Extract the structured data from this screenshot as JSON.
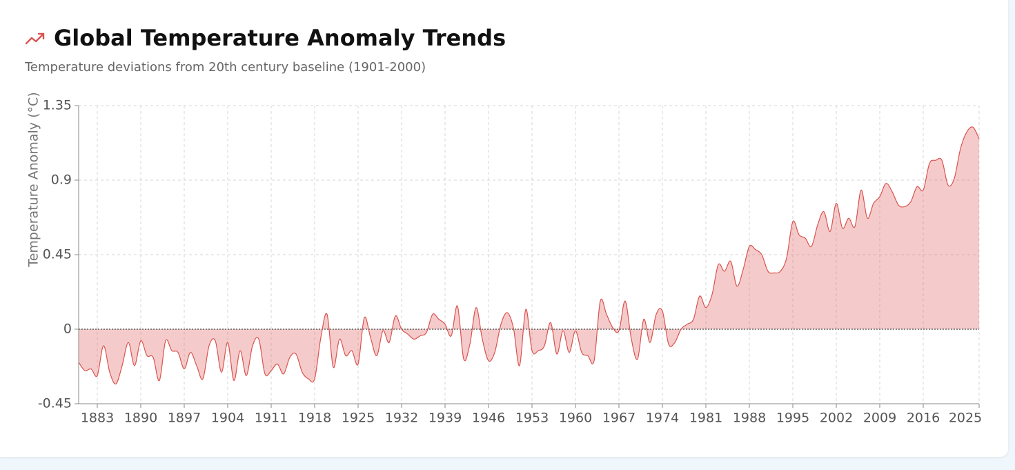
{
  "chart_data": {
    "type": "area",
    "title": "Global Temperature Anomaly Trends",
    "subtitle": "Temperature deviations from 20th century baseline (1901-2000)",
    "y_label": "Temperature Anomaly (°C)",
    "color": "#d9534f",
    "grid": true,
    "xlim": [
      1880,
      2025
    ],
    "ylim": [
      -0.45,
      1.35
    ],
    "xticks": [
      1883,
      1890,
      1897,
      1904,
      1911,
      1918,
      1925,
      1932,
      1939,
      1946,
      1953,
      1960,
      1967,
      1974,
      1981,
      1988,
      1995,
      2002,
      2009,
      2016,
      2025
    ],
    "yticks": [
      -0.45,
      0,
      0.45,
      0.9,
      1.35
    ],
    "x": [
      1880,
      1881,
      1882,
      1883,
      1884,
      1885,
      1886,
      1887,
      1888,
      1889,
      1890,
      1891,
      1892,
      1893,
      1894,
      1895,
      1896,
      1897,
      1898,
      1899,
      1900,
      1901,
      1902,
      1903,
      1904,
      1905,
      1906,
      1907,
      1908,
      1909,
      1910,
      1911,
      1912,
      1913,
      1914,
      1915,
      1916,
      1917,
      1918,
      1919,
      1920,
      1921,
      1922,
      1923,
      1924,
      1925,
      1926,
      1927,
      1928,
      1929,
      1930,
      1931,
      1932,
      1933,
      1934,
      1935,
      1936,
      1937,
      1938,
      1939,
      1940,
      1941,
      1942,
      1943,
      1944,
      1945,
      1946,
      1947,
      1948,
      1949,
      1950,
      1951,
      1952,
      1953,
      1954,
      1955,
      1956,
      1957,
      1958,
      1959,
      1960,
      1961,
      1962,
      1963,
      1964,
      1965,
      1966,
      1967,
      1968,
      1969,
      1970,
      1971,
      1972,
      1973,
      1974,
      1975,
      1976,
      1977,
      1978,
      1979,
      1980,
      1981,
      1982,
      1983,
      1984,
      1985,
      1986,
      1987,
      1988,
      1989,
      1990,
      1991,
      1992,
      1993,
      1994,
      1995,
      1996,
      1997,
      1998,
      1999,
      2000,
      2001,
      2002,
      2003,
      2004,
      2005,
      2006,
      2007,
      2008,
      2009,
      2010,
      2011,
      2012,
      2013,
      2014,
      2015,
      2016,
      2017,
      2018,
      2019,
      2020,
      2021,
      2022,
      2023,
      2024,
      2025
    ],
    "values": [
      -0.2,
      -0.25,
      -0.24,
      -0.28,
      -0.1,
      -0.26,
      -0.33,
      -0.22,
      -0.08,
      -0.22,
      -0.07,
      -0.16,
      -0.17,
      -0.31,
      -0.07,
      -0.13,
      -0.14,
      -0.24,
      -0.14,
      -0.22,
      -0.3,
      -0.1,
      -0.07,
      -0.26,
      -0.08,
      -0.31,
      -0.13,
      -0.28,
      -0.1,
      -0.06,
      -0.27,
      -0.25,
      -0.21,
      -0.27,
      -0.17,
      -0.15,
      -0.26,
      -0.3,
      -0.3,
      -0.05,
      0.09,
      -0.23,
      -0.06,
      -0.16,
      -0.13,
      -0.21,
      0.07,
      -0.05,
      -0.16,
      -0.01,
      -0.08,
      0.08,
      0.0,
      -0.03,
      -0.06,
      -0.04,
      -0.02,
      0.09,
      0.06,
      0.03,
      -0.04,
      0.14,
      -0.18,
      -0.09,
      0.13,
      -0.06,
      -0.19,
      -0.14,
      0.03,
      0.1,
      0.01,
      -0.22,
      0.12,
      -0.13,
      -0.13,
      -0.1,
      0.04,
      -0.15,
      -0.01,
      -0.14,
      -0.01,
      -0.14,
      -0.16,
      -0.19,
      0.17,
      0.09,
      0.01,
      -0.01,
      0.17,
      -0.06,
      -0.18,
      0.06,
      -0.08,
      0.09,
      0.11,
      -0.09,
      -0.08,
      0.0,
      0.03,
      0.06,
      0.2,
      0.13,
      0.21,
      0.39,
      0.35,
      0.41,
      0.26,
      0.36,
      0.5,
      0.48,
      0.45,
      0.35,
      0.34,
      0.35,
      0.43,
      0.65,
      0.57,
      0.55,
      0.5,
      0.63,
      0.71,
      0.59,
      0.76,
      0.61,
      0.67,
      0.62,
      0.84,
      0.67,
      0.76,
      0.8,
      0.88,
      0.83,
      0.75,
      0.74,
      0.77,
      0.86,
      0.84,
      1.0,
      1.02,
      1.02,
      0.87,
      0.91,
      1.09,
      1.19,
      1.22,
      1.15
    ]
  }
}
